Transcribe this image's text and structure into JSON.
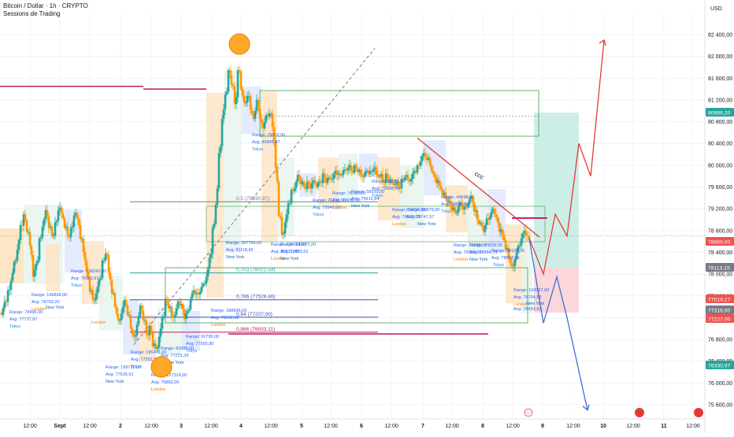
{
  "header": {
    "symbol": "Bitcoin / Dollar · 1h · CRYPTO",
    "indicator": "Sessions de Trading",
    "currency": "USD"
  },
  "chart_data": {
    "type": "candlestick",
    "title": "Bitcoin / Dollar · 1h · CRYPTO",
    "ylim": [
      75400,
      82800
    ],
    "y_ticks": [
      82400,
      82000,
      81600,
      81200,
      80800,
      80400,
      80000,
      79600,
      79200,
      78800,
      78400,
      78000,
      77600,
      77200,
      76800,
      76400,
      76000,
      75600
    ],
    "x_ticks": [
      "12:00",
      "Sept",
      "12:00",
      "2",
      "12:00",
      "3",
      "12:00",
      "4",
      "12:00",
      "5",
      "12:00",
      "6",
      "12:00",
      "7",
      "12:00",
      "8",
      "12:00",
      "9",
      "12:00",
      "10",
      "12:00",
      "11",
      "12:00"
    ],
    "price_badges": [
      {
        "value": "80966,20",
        "color": "#26a69a"
      },
      {
        "value": "78669,00",
        "color": "#ef5350"
      },
      {
        "value": "78113,15",
        "color": "#787b86"
      },
      {
        "value": "77519,27",
        "color": "#ef5350"
      },
      {
        "value": "77316,90",
        "color": "#787b86"
      },
      {
        "value": "77227,00",
        "color": "#ef5350"
      },
      {
        "value": "76330,97",
        "color": "#26a69a"
      }
    ],
    "fib_levels": [
      {
        "label": "0,5 (79330,97)",
        "value": 79330
      },
      {
        "label": "0,703 (78022,54)",
        "value": 78022
      },
      {
        "label": "0,786 (77528,46)",
        "value": 77528
      },
      {
        "label": "0,84 (77207,00)",
        "value": 77207
      },
      {
        "label": "0,886 (76933,11)",
        "value": 76933
      }
    ],
    "annotations": [
      "ccc"
    ],
    "close_trend": [
      [
        0,
        77300
      ],
      [
        4,
        77500
      ],
      [
        8,
        77650
      ],
      [
        12,
        77900
      ],
      [
        16,
        78200
      ],
      [
        20,
        78500
      ],
      [
        24,
        78900
      ],
      [
        28,
        79050
      ],
      [
        32,
        78800
      ],
      [
        36,
        78500
      ],
      [
        40,
        78000
      ],
      [
        44,
        78200
      ],
      [
        48,
        78600
      ],
      [
        52,
        78900
      ],
      [
        56,
        79150
      ],
      [
        60,
        78900
      ],
      [
        64,
        78700
      ],
      [
        68,
        78900
      ],
      [
        72,
        79200
      ],
      [
        76,
        79100
      ],
      [
        80,
        78900
      ],
      [
        84,
        78700
      ],
      [
        88,
        78800
      ],
      [
        92,
        79100
      ],
      [
        96,
        79000
      ],
      [
        100,
        78700
      ],
      [
        104,
        78400
      ],
      [
        108,
        78000
      ],
      [
        112,
        77700
      ],
      [
        116,
        77500
      ],
      [
        120,
        77700
      ],
      [
        124,
        77900
      ],
      [
        128,
        78200
      ],
      [
        132,
        78400
      ],
      [
        136,
        78000
      ],
      [
        140,
        77700
      ],
      [
        144,
        77400
      ],
      [
        148,
        77100
      ],
      [
        152,
        77300
      ],
      [
        156,
        77500
      ],
      [
        160,
        77300
      ],
      [
        164,
        77000
      ],
      [
        168,
        76800
      ],
      [
        172,
        77100
      ],
      [
        176,
        77400
      ],
      [
        180,
        77200
      ],
      [
        184,
        76900
      ],
      [
        188,
        77000
      ],
      [
        192,
        76700
      ],
      [
        196,
        76600
      ],
      [
        200,
        76900
      ],
      [
        204,
        77200
      ],
      [
        208,
        77500
      ],
      [
        212,
        77400
      ],
      [
        216,
        77200
      ],
      [
        220,
        77300
      ],
      [
        224,
        77500
      ],
      [
        228,
        77400
      ],
      [
        232,
        77200
      ],
      [
        236,
        77300
      ],
      [
        240,
        77600
      ],
      [
        244,
        77700
      ],
      [
        248,
        77600
      ],
      [
        252,
        77700
      ],
      [
        256,
        77800
      ],
      [
        260,
        78000
      ],
      [
        264,
        78300
      ],
      [
        268,
        78800
      ],
      [
        272,
        79300
      ],
      [
        276,
        80200
      ],
      [
        280,
        80900
      ],
      [
        284,
        81300
      ],
      [
        288,
        81700
      ],
      [
        292,
        81500
      ],
      [
        296,
        81100
      ],
      [
        300,
        81800
      ],
      [
        304,
        81400
      ],
      [
        308,
        81100
      ],
      [
        312,
        81300
      ],
      [
        316,
        81000
      ],
      [
        320,
        80900
      ],
      [
        324,
        81200
      ],
      [
        328,
        80800
      ],
      [
        332,
        80700
      ],
      [
        336,
        80900
      ],
      [
        340,
        81000
      ],
      [
        344,
        80700
      ],
      [
        348,
        79900
      ],
      [
        352,
        79100
      ],
      [
        356,
        78700
      ],
      [
        360,
        79000
      ],
      [
        364,
        79300
      ],
      [
        368,
        79500
      ],
      [
        372,
        79600
      ],
      [
        376,
        79800
      ],
      [
        380,
        79700
      ],
      [
        384,
        79600
      ],
      [
        388,
        79650
      ],
      [
        392,
        79600
      ],
      [
        396,
        79700
      ],
      [
        400,
        79650
      ],
      [
        404,
        79700
      ],
      [
        408,
        79800
      ],
      [
        412,
        79700
      ],
      [
        416,
        79750
      ],
      [
        420,
        79800
      ],
      [
        424,
        79900
      ],
      [
        428,
        79800
      ],
      [
        432,
        79850
      ],
      [
        436,
        79900
      ],
      [
        440,
        80000
      ],
      [
        444,
        79900
      ],
      [
        448,
        79950
      ],
      [
        452,
        79900
      ],
      [
        456,
        79800
      ],
      [
        460,
        79850
      ],
      [
        464,
        79900
      ],
      [
        468,
        79850
      ],
      [
        472,
        79950
      ],
      [
        476,
        79800
      ],
      [
        480,
        79850
      ],
      [
        484,
        79700
      ],
      [
        488,
        79800
      ],
      [
        492,
        79700
      ],
      [
        496,
        79650
      ],
      [
        500,
        79700
      ],
      [
        504,
        79600
      ],
      [
        508,
        79700
      ],
      [
        512,
        79800
      ],
      [
        516,
        79700
      ],
      [
        520,
        79800
      ],
      [
        524,
        79900
      ],
      [
        528,
        79950
      ],
      [
        532,
        80100
      ],
      [
        536,
        80200
      ],
      [
        540,
        80150
      ],
      [
        544,
        80000
      ],
      [
        548,
        79800
      ],
      [
        552,
        79700
      ],
      [
        556,
        79600
      ],
      [
        560,
        79500
      ],
      [
        564,
        79400
      ],
      [
        568,
        79300
      ],
      [
        572,
        79200
      ],
      [
        576,
        79100
      ],
      [
        580,
        79300
      ],
      [
        584,
        79250
      ],
      [
        588,
        79200
      ],
      [
        592,
        79300
      ],
      [
        596,
        79400
      ],
      [
        600,
        79200
      ],
      [
        604,
        79000
      ],
      [
        608,
        78900
      ],
      [
        612,
        78800
      ],
      [
        616,
        79000
      ],
      [
        620,
        79100
      ],
      [
        624,
        79200
      ],
      [
        628,
        79000
      ],
      [
        632,
        78800
      ],
      [
        636,
        78700
      ],
      [
        640,
        78500
      ],
      [
        644,
        78300
      ],
      [
        648,
        78100
      ],
      [
        652,
        78300
      ],
      [
        656,
        78500
      ],
      [
        660,
        78700
      ],
      [
        664,
        78800
      ],
      [
        668,
        78650
      ]
    ],
    "projection_up": [
      [
        672,
        78660
      ],
      [
        690,
        78000
      ],
      [
        705,
        79100
      ],
      [
        720,
        78700
      ],
      [
        735,
        80400
      ],
      [
        750,
        79800
      ],
      [
        767,
        82300
      ]
    ],
    "projection_down": [
      [
        672,
        78660
      ],
      [
        690,
        77100
      ],
      [
        707,
        77950
      ],
      [
        720,
        77200
      ],
      [
        746,
        75500
      ]
    ],
    "session_labels": [
      {
        "text": "Range: 78496,00",
        "x": 12,
        "y": 398
      },
      {
        "text": "Avg: 77737,87",
        "x": 12,
        "y": 407
      },
      {
        "text": "Tokyo",
        "x": 12,
        "y": 416
      },
      {
        "text": "Range: 149834,00",
        "x": 40,
        "y": 376
      },
      {
        "text": "Avg: 78763,20",
        "x": 40,
        "y": 385
      },
      {
        "text": "London",
        "x": 40,
        "y": 394
      },
      {
        "text": "New York",
        "x": 58,
        "y": 392
      },
      {
        "text": "Range: 138260,00",
        "x": 90,
        "y": 346
      },
      {
        "text": "Avg: 78343,91",
        "x": 90,
        "y": 355
      },
      {
        "text": "Tokyo",
        "x": 90,
        "y": 364
      },
      {
        "text": "London",
        "x": 116,
        "y": 411
      },
      {
        "text": "Range: 199711,00",
        "x": 134,
        "y": 468
      },
      {
        "text": "Avg: 77539,91",
        "x": 134,
        "y": 477
      },
      {
        "text": "New York",
        "x": 134,
        "y": 486
      },
      {
        "text": "Range: 185471,00",
        "x": 166,
        "y": 449
      },
      {
        "text": "Avg: 77252,24",
        "x": 166,
        "y": 458
      },
      {
        "text": "Tokyo",
        "x": 166,
        "y": 467
      },
      {
        "text": "Range: 127319,00",
        "x": 192,
        "y": 478
      },
      {
        "text": "Avg: 76862,00",
        "x": 192,
        "y": 487
      },
      {
        "text": "London",
        "x": 192,
        "y": 496
      },
      {
        "text": "Range: 82495,00",
        "x": 204,
        "y": 444
      },
      {
        "text": "Avg: 77231,39",
        "x": 204,
        "y": 453
      },
      {
        "text": "New York",
        "x": 210,
        "y": 462
      },
      {
        "text": "Range: 92795,00",
        "x": 236,
        "y": 429
      },
      {
        "text": "Avg: 77555,80",
        "x": 236,
        "y": 438
      },
      {
        "text": "Tokyo",
        "x": 236,
        "y": 447
      },
      {
        "text": "Range: 388696,00",
        "x": 268,
        "y": 396
      },
      {
        "text": "Avg: 78162,98",
        "x": 268,
        "y": 405
      },
      {
        "text": "London",
        "x": 268,
        "y": 414
      },
      {
        "text": "Range: 367756,00",
        "x": 287,
        "y": 310
      },
      {
        "text": "Avg: 81118,65",
        "x": 287,
        "y": 319
      },
      {
        "text": "New York",
        "x": 287,
        "y": 328
      },
      {
        "text": "Range: 79812,00",
        "x": 320,
        "y": 173
      },
      {
        "text": "Avg: 80945,97",
        "x": 320,
        "y": 182
      },
      {
        "text": "Tokyo",
        "x": 320,
        "y": 191
      },
      {
        "text": "Range: 178001,00",
        "x": 344,
        "y": 312
      },
      {
        "text": "Avg: 80331,46",
        "x": 344,
        "y": 321
      },
      {
        "text": "London",
        "x": 344,
        "y": 330
      },
      {
        "text": "Range: 185072,00",
        "x": 356,
        "y": 312
      },
      {
        "text": "Avg: 79493,52",
        "x": 356,
        "y": 321
      },
      {
        "text": "New York",
        "x": 356,
        "y": 330
      },
      {
        "text": "Range: 26711,00",
        "x": 397,
        "y": 256
      },
      {
        "text": "Avg: 79942,00",
        "x": 397,
        "y": 265
      },
      {
        "text": "Tokyo",
        "x": 397,
        "y": 274
      },
      {
        "text": "Range: 76190,00",
        "x": 422,
        "y": 247
      },
      {
        "text": "Avg: 79930,10",
        "x": 422,
        "y": 256
      },
      {
        "text": "London",
        "x": 422,
        "y": 265
      },
      {
        "text": "Range: 58350,00",
        "x": 446,
        "y": 245
      },
      {
        "text": "Avg: 79912,84",
        "x": 446,
        "y": 254
      },
      {
        "text": "New York",
        "x": 446,
        "y": 263
      },
      {
        "text": "Range: 31009,00",
        "x": 472,
        "y": 232
      },
      {
        "text": "Avg: 79938,54",
        "x": 472,
        "y": 241
      },
      {
        "text": "Tokyo",
        "x": 472,
        "y": 250
      },
      {
        "text": "Range: 75210,00",
        "x": 498,
        "y": 268
      },
      {
        "text": "Avg: 79520,00",
        "x": 498,
        "y": 277
      },
      {
        "text": "London",
        "x": 498,
        "y": 286
      },
      {
        "text": "Range: 88879,00",
        "x": 516,
        "y": 268
      },
      {
        "text": "Avg: 79747,57",
        "x": 516,
        "y": 277
      },
      {
        "text": "New York",
        "x": 530,
        "y": 286
      },
      {
        "text": "Range: 44598,00",
        "x": 560,
        "y": 252
      },
      {
        "text": "Avg: 79635,84",
        "x": 560,
        "y": 261
      },
      {
        "text": "Tokyo",
        "x": 560,
        "y": 270
      },
      {
        "text": "Range: 73788,00",
        "x": 576,
        "y": 313
      },
      {
        "text": "Avg: 79126,58",
        "x": 576,
        "y": 322
      },
      {
        "text": "London",
        "x": 576,
        "y": 331
      },
      {
        "text": "Range: 79099,00",
        "x": 596,
        "y": 313
      },
      {
        "text": "Avg: 78964,79",
        "x": 596,
        "y": 322
      },
      {
        "text": "New York",
        "x": 596,
        "y": 331
      },
      {
        "text": "Range: 49108,00",
        "x": 624,
        "y": 320
      },
      {
        "text": "Avg: 78964,79",
        "x": 624,
        "y": 329
      },
      {
        "text": "Tokyo",
        "x": 626,
        "y": 338
      },
      {
        "text": "Range: 104367,00",
        "x": 652,
        "y": 370
      },
      {
        "text": "Avg: 78704,55",
        "x": 652,
        "y": 379
      },
      {
        "text": "London",
        "x": 652,
        "y": 388
      },
      {
        "text": "New York",
        "x": 668,
        "y": 387
      },
      {
        "text": "Avg: 78493,42",
        "x": 652,
        "y": 394
      }
    ]
  }
}
